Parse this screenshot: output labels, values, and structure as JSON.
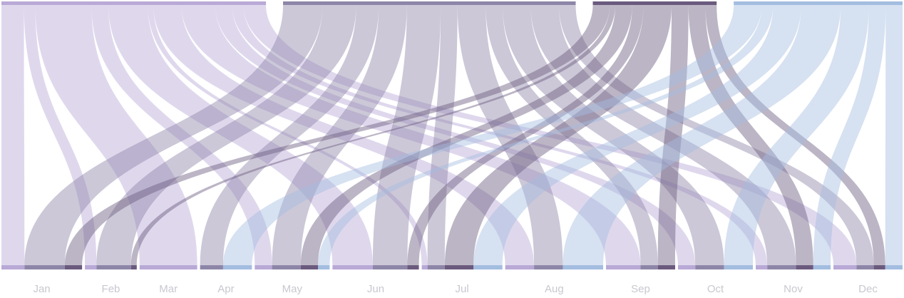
{
  "chart_data": {
    "type": "sankey",
    "title": "",
    "sources": [
      {
        "name": "",
        "color": "#b9a9d6"
      },
      {
        "name": "",
        "color": "#8e86a8"
      },
      {
        "name": "",
        "color": "#6b5a7e"
      },
      {
        "name": "",
        "color": "#a3bde0"
      }
    ],
    "months": [
      "Jan",
      "Feb",
      "Mar",
      "Apr",
      "May",
      "Jun",
      "Jul",
      "Aug",
      "Sep",
      "Oct",
      "Nov",
      "Dec"
    ],
    "flows": [
      [
        4,
        2,
        10,
        0,
        3,
        7,
        1,
        5,
        6,
        3,
        2,
        4
      ],
      [
        7,
        6,
        0,
        4,
        5,
        6,
        3,
        5,
        3,
        5,
        5,
        3
      ],
      [
        3,
        1,
        0,
        0,
        3,
        2,
        5,
        0,
        3,
        0,
        3,
        2
      ],
      [
        0,
        0,
        0,
        5,
        2,
        0,
        5,
        7,
        0,
        5,
        3,
        3
      ]
    ],
    "link_opacity": 0.45
  }
}
